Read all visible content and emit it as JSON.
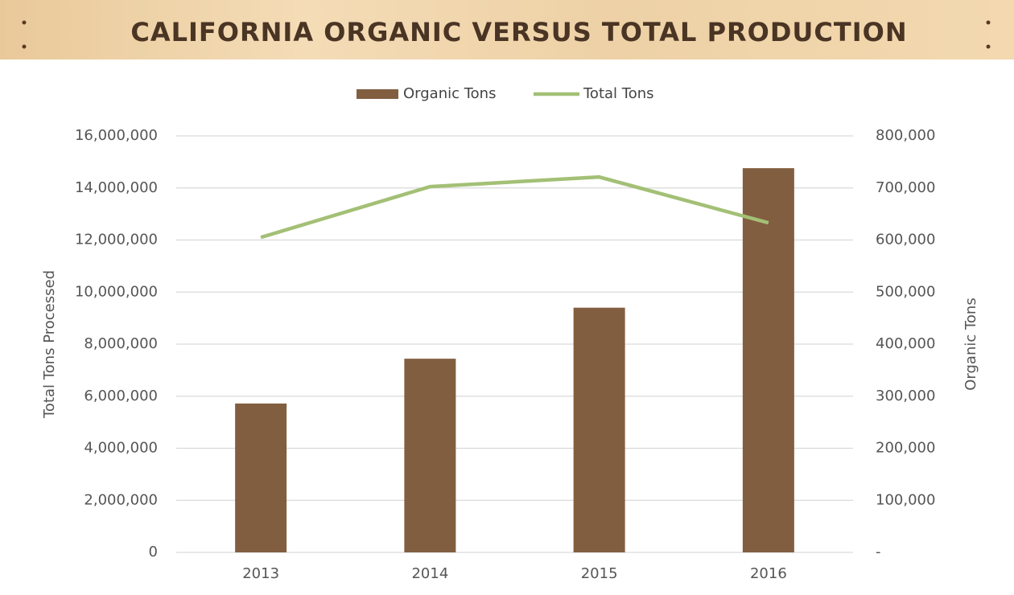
{
  "chart_data": {
    "type": "bar",
    "title": "CALIFORNIA ORGANIC VERSUS TOTAL PRODUCTION",
    "categories": [
      "2013",
      "2014",
      "2015",
      "2016"
    ],
    "series": [
      {
        "name": "Organic Tons",
        "type": "bar",
        "axis": "y2",
        "color": "#825e40",
        "values": [
          286000,
          372000,
          470000,
          738000
        ]
      },
      {
        "name": "Total Tons",
        "type": "line",
        "color": "#a3c076",
        "values": [
          12100000,
          14050000,
          14420000,
          12660000
        ]
      }
    ],
    "ylabel": "Total Tons Processed",
    "y2label": "Organic Tons",
    "ylim": [
      0,
      16000000
    ],
    "yticks": [
      0,
      {
        "value": 2000000,
        "label": "2,000,000"
      },
      {
        "value": 4000000,
        "label": "4,000,000"
      },
      {
        "value": 6000000,
        "label": "6,000,000"
      },
      {
        "value": 8000000,
        "label": "8,000,000"
      },
      {
        "value": 10000000,
        "label": "10,000,000"
      },
      {
        "value": 12000000,
        "label": "12,000,000"
      },
      {
        "value": 14000000,
        "label": "14,000,000"
      },
      {
        "value": 16000000,
        "label": "16,000,000"
      }
    ],
    "y2lim": [
      0,
      800000
    ],
    "y2ticks": [
      {
        "value": 0,
        "label": "-"
      },
      {
        "value": 100000,
        "label": "100,000"
      },
      {
        "value": 200000,
        "label": "200,000"
      },
      {
        "value": 300000,
        "label": "300,000"
      },
      {
        "value": 400000,
        "label": "400,000"
      },
      {
        "value": 500000,
        "label": "500,000"
      },
      {
        "value": 600000,
        "label": "600,000"
      },
      {
        "value": 700000,
        "label": "700,000"
      },
      {
        "value": 800000,
        "label": "800,000"
      }
    ],
    "grid": true,
    "legend": "top"
  }
}
